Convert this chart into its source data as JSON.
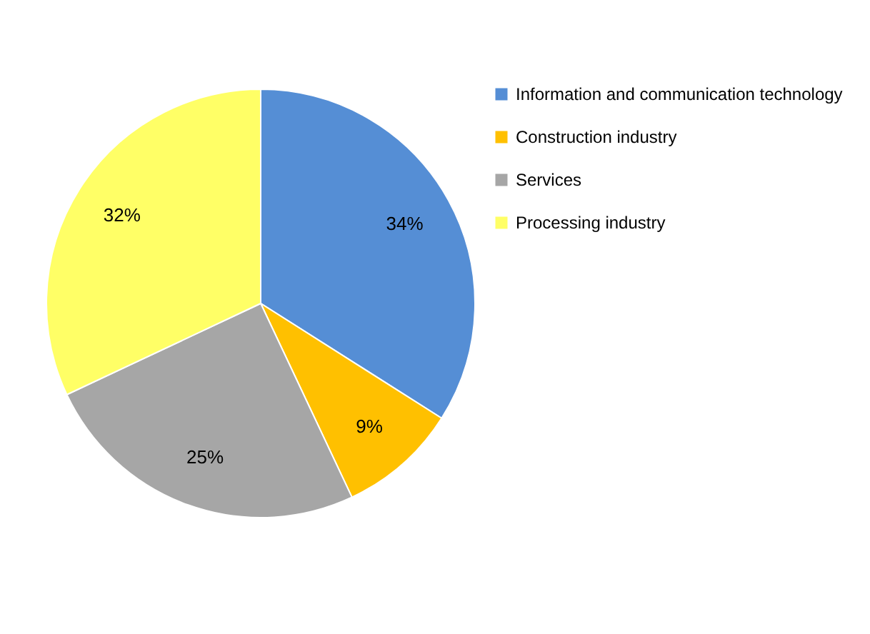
{
  "chart_data": {
    "type": "pie",
    "categories": [
      "Information and communication technology",
      "Construction industry",
      "Services",
      "Processing industry"
    ],
    "values": [
      34,
      9,
      25,
      32
    ],
    "colors": [
      "#558ed5",
      "#ffc000",
      "#a6a6a6",
      "#ffff66"
    ],
    "value_labels": [
      "34%",
      "9%",
      "25%",
      "32%"
    ],
    "legend": "right"
  }
}
